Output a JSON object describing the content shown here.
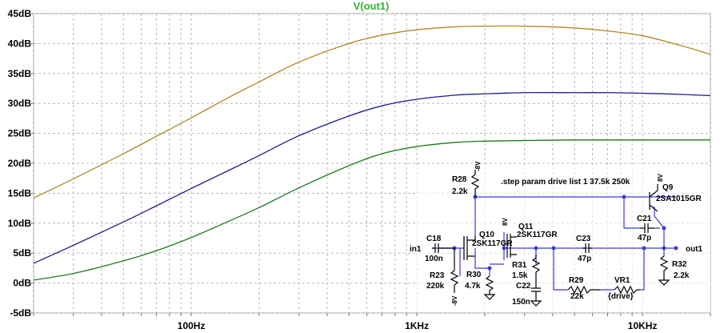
{
  "chart_data": {
    "type": "line",
    "title": "V(out1)",
    "title_color": "#2fb52f",
    "xscale": "log",
    "xlim": [
      20,
      20000
    ],
    "ylim": [
      -5,
      45
    ],
    "grid": true,
    "ytick_labels": [
      "-5dB",
      "0dB",
      "5dB",
      "10dB",
      "15dB",
      "20dB",
      "25dB",
      "30dB",
      "35dB",
      "40dB",
      "45dB"
    ],
    "ytick_values": [
      -5,
      0,
      5,
      10,
      15,
      20,
      25,
      30,
      35,
      40,
      45
    ],
    "xtick_labels": [
      "100Hz",
      "1KHz",
      "10KHz"
    ],
    "xtick_values": [
      100,
      1000,
      10000
    ],
    "series": [
      {
        "color": "#b08a20",
        "x": [
          20,
          30,
          50,
          70,
          100,
          150,
          200,
          300,
          500,
          700,
          1000,
          1500,
          2000,
          3000,
          5000,
          7000,
          10000,
          15000,
          20000
        ],
        "y": [
          14.2,
          17.4,
          21.6,
          24.5,
          27.6,
          31.2,
          33.6,
          36.9,
          40.0,
          41.4,
          42.3,
          42.8,
          42.9,
          42.9,
          42.6,
          42.1,
          41.3,
          39.6,
          38.2
        ]
      },
      {
        "color": "#1c1c8f",
        "x": [
          20,
          30,
          50,
          70,
          100,
          150,
          200,
          300,
          500,
          700,
          1000,
          1500,
          2000,
          3000,
          5000,
          7000,
          10000,
          15000,
          20000
        ],
        "y": [
          3.3,
          6.3,
          10.2,
          12.9,
          15.8,
          19.0,
          21.3,
          24.6,
          27.9,
          29.6,
          30.7,
          31.4,
          31.6,
          31.8,
          31.8,
          31.8,
          31.7,
          31.5,
          31.3
        ]
      },
      {
        "color": "#1f7a1f",
        "x": [
          20,
          30,
          50,
          70,
          100,
          150,
          200,
          300,
          500,
          700,
          1000,
          1500,
          2000,
          3000,
          5000,
          7000,
          10000,
          15000,
          20000
        ],
        "y": [
          0.5,
          1.6,
          3.7,
          5.4,
          7.6,
          10.5,
          12.6,
          15.9,
          19.6,
          21.6,
          22.8,
          23.5,
          23.7,
          23.8,
          23.9,
          23.9,
          23.9,
          23.9,
          23.9
        ]
      }
    ]
  },
  "schematic": {
    "directive": ".step param drive list 1 37.5k 250k",
    "labels": {
      "r28": "R28",
      "r28_val": "2.2k",
      "q9": "Q9",
      "q9_model": "2SA1015GR",
      "c21": "C21",
      "c21_val": "47p",
      "q10": "Q10",
      "q10_model": "2SK117GR",
      "q11": "Q11",
      "q11_model": "2SK117GR",
      "c23": "C23",
      "c23_val": "47p",
      "c18": "C18",
      "c18_val": "100n",
      "in1": "in1",
      "out1": "out1",
      "r31": "R31",
      "r31_val": "1.5k",
      "c22": "C22",
      "c22_val": "150n",
      "r29": "R29",
      "r29_val": "22k",
      "vr1": "VR1",
      "vr1_val": "{drive}",
      "r23": "R23",
      "r23_val": "220k",
      "r30": "R30",
      "r30_val": "4.7k",
      "r32": "R32",
      "r32_val": "2.2k",
      "rail_pos": "8V",
      "rail_neg": "-8V"
    }
  }
}
